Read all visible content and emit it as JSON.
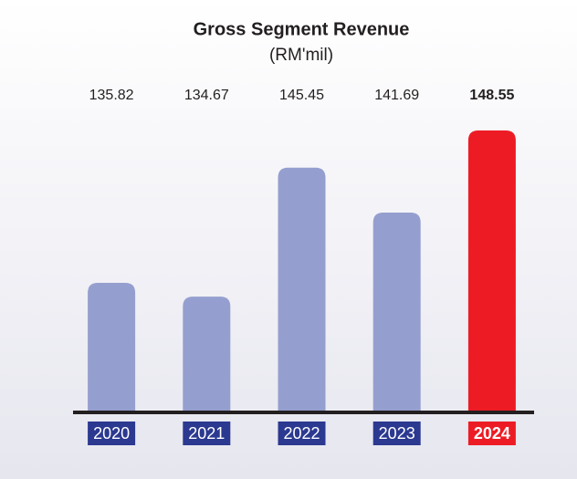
{
  "chart_data": {
    "type": "bar",
    "title": "Gross Segment Revenue",
    "subtitle": "(RM'mil)",
    "categories": [
      "2020",
      "2021",
      "2022",
      "2023",
      "2024"
    ],
    "values": [
      135.82,
      134.67,
      145.45,
      141.69,
      148.55
    ],
    "colors": [
      "#959fcf",
      "#959fcf",
      "#959fcf",
      "#959fcf",
      "#ed1c24"
    ],
    "label_colors": [
      "#2b3990",
      "#2b3990",
      "#2b3990",
      "#2b3990",
      "#ed1c24"
    ],
    "highlight_color": "#ed1c24",
    "ylim": [
      125,
      150
    ]
  }
}
